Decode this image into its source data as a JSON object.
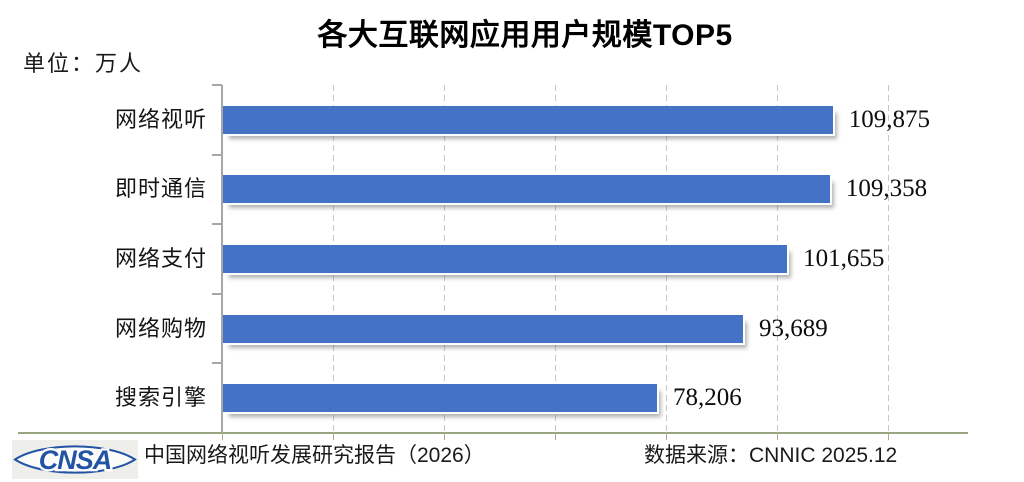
{
  "title": "各大互联网应用用户规模TOP5",
  "unit_label": "单位：万人",
  "chart_data": {
    "type": "bar",
    "orientation": "horizontal",
    "title": "各大互联网应用用户规模TOP5",
    "unit": "万人",
    "categories": [
      "网络视听",
      "即时通信",
      "网络支付",
      "网络购物",
      "搜索引擎"
    ],
    "values": [
      109875,
      109358,
      101655,
      93689,
      78206
    ],
    "value_labels": [
      "109,875",
      "109,358",
      "101,655",
      "93,689",
      "78,206"
    ],
    "xlim": [
      0,
      120000
    ],
    "grid_interval": 20000,
    "grid_style": "vertical-dashed",
    "x_tick_labels": "none",
    "value_label_position": "right-of-bar",
    "bar_color": "#4472c4",
    "legend": null
  },
  "footer": {
    "logo_text": "CNSA",
    "report_source": "中国网络视听发展研究报告（2026）",
    "data_source": "数据来源：CNNIC 2025.12"
  },
  "colors": {
    "bar": "#4472c4",
    "logo_blue": "#2353a4",
    "x_axis_line": "#9aa67f",
    "axis_gray": "#a6a6a6",
    "gridline": "#c7c7c7",
    "title_text": "#000000",
    "body_text": "#1a1a1a"
  }
}
